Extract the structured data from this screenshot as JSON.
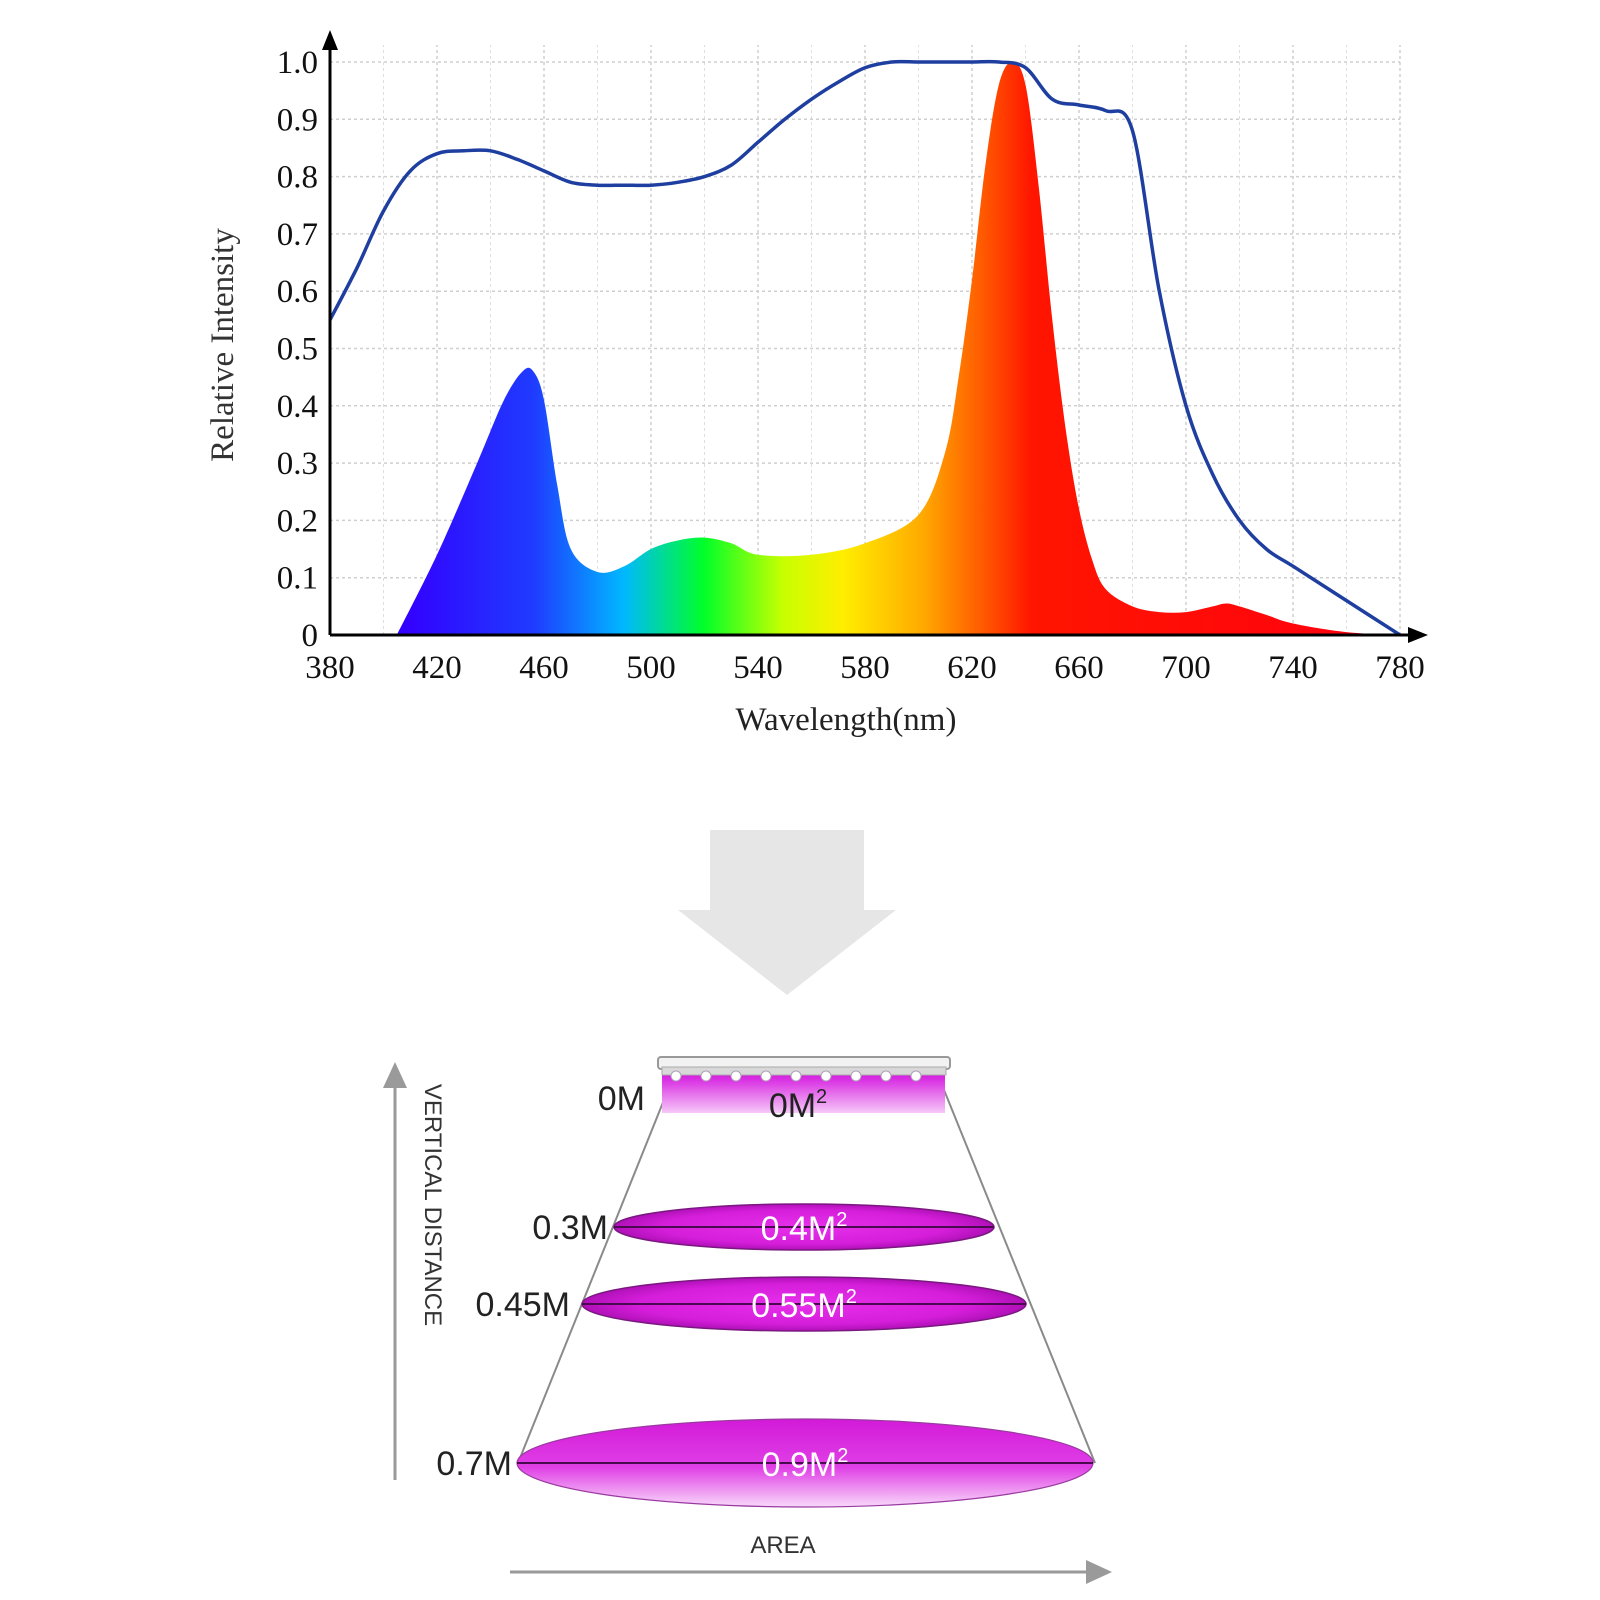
{
  "chart_data": {
    "type": "area",
    "xlabel": "Wavelength(nm)",
    "ylabel": "Relative Intensity",
    "xlim": [
      380,
      780
    ],
    "ylim": [
      0,
      1.0
    ],
    "x_ticks": [
      "380",
      "420",
      "460",
      "500",
      "540",
      "580",
      "620",
      "660",
      "700",
      "740",
      "780"
    ],
    "y_ticks": [
      "0",
      "0.1",
      "0.2",
      "0.3",
      "0.4",
      "0.5",
      "0.6",
      "0.7",
      "0.8",
      "0.9",
      "1.0"
    ],
    "grid": true,
    "series": [
      {
        "kind": "area",
        "fill": "visible-spectrum-gradient",
        "x": [
          405,
          420,
          435,
          445,
          452,
          456,
          460,
          465,
          470,
          480,
          490,
          500,
          510,
          520,
          530,
          540,
          560,
          580,
          600,
          610,
          615,
          620,
          625,
          630,
          635,
          640,
          645,
          650,
          655,
          660,
          665,
          670,
          680,
          690,
          700,
          710,
          715,
          720,
          730,
          740,
          760,
          780
        ],
        "y": [
          0.0,
          0.14,
          0.3,
          0.41,
          0.46,
          0.46,
          0.41,
          0.26,
          0.15,
          0.11,
          0.12,
          0.15,
          0.165,
          0.17,
          0.16,
          0.14,
          0.14,
          0.16,
          0.21,
          0.32,
          0.45,
          0.62,
          0.82,
          0.96,
          1.0,
          0.96,
          0.78,
          0.55,
          0.36,
          0.22,
          0.13,
          0.08,
          0.05,
          0.04,
          0.04,
          0.05,
          0.055,
          0.05,
          0.035,
          0.02,
          0.005,
          0.0
        ]
      },
      {
        "kind": "line",
        "color": "#1f3fa0",
        "x": [
          380,
          390,
          400,
          410,
          420,
          430,
          440,
          450,
          460,
          470,
          480,
          490,
          500,
          510,
          520,
          530,
          540,
          550,
          560,
          570,
          580,
          590,
          600,
          610,
          620,
          630,
          640,
          650,
          660,
          670,
          680,
          690,
          700,
          710,
          720,
          730,
          740,
          760,
          780
        ],
        "y": [
          0.55,
          0.64,
          0.74,
          0.81,
          0.84,
          0.845,
          0.845,
          0.83,
          0.81,
          0.79,
          0.785,
          0.785,
          0.785,
          0.79,
          0.8,
          0.82,
          0.86,
          0.9,
          0.935,
          0.965,
          0.99,
          1.0,
          1.0,
          1.0,
          1.0,
          1.0,
          0.99,
          0.935,
          0.925,
          0.915,
          0.88,
          0.6,
          0.4,
          0.28,
          0.2,
          0.15,
          0.12,
          0.06,
          0.0
        ]
      }
    ]
  },
  "diagram": {
    "arrow_color": "#e6e6e6",
    "beam_color": "#e020e8",
    "vertical_label": "VERTICAL DISTANCE",
    "horizontal_label": "AREA",
    "levels": [
      {
        "distance": "0M",
        "area": "0M",
        "sup": "2"
      },
      {
        "distance": "0.3M",
        "area": "0.4M",
        "sup": "2"
      },
      {
        "distance": "0.45M",
        "area": "0.55M",
        "sup": "2"
      },
      {
        "distance": "0.7M",
        "area": "0.9M",
        "sup": "2"
      }
    ]
  }
}
